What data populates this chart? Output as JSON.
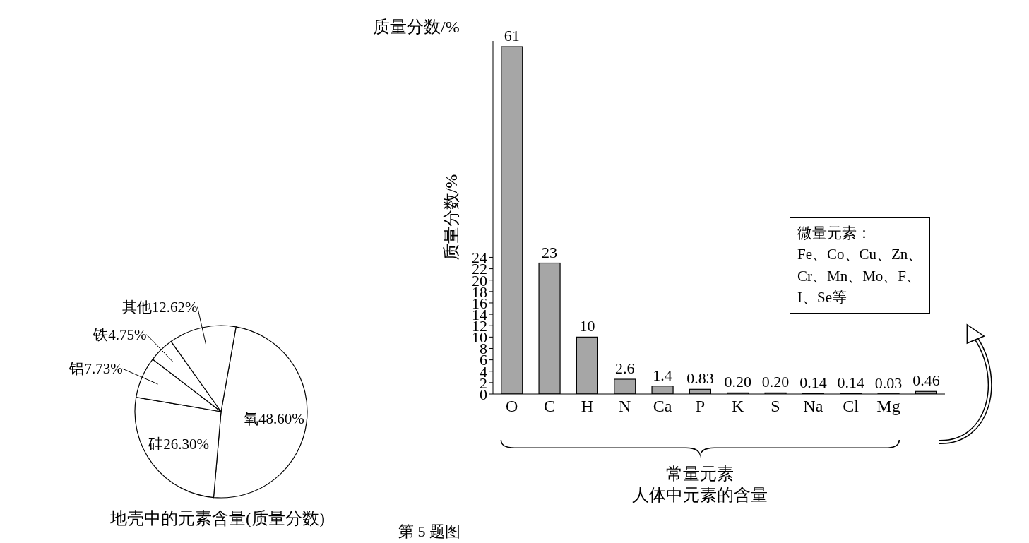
{
  "chart_data": [
    {
      "type": "pie",
      "title": "地壳中的元素含量(质量分数)",
      "categories": [
        "氧",
        "硅",
        "铝",
        "铁",
        "其他"
      ],
      "values": [
        48.6,
        26.3,
        7.73,
        4.75,
        12.62
      ],
      "colors": [
        "#ffffff",
        "#ffffff",
        "#ffffff",
        "#ffffff",
        "#ffffff"
      ],
      "value_labels": [
        "48.60%",
        "26.30%",
        "7.73%",
        "4.75%",
        "12.62%"
      ]
    },
    {
      "type": "bar",
      "title": "人体中元素的含量",
      "ylabel": "质量分数/%",
      "categories": [
        "O",
        "C",
        "H",
        "N",
        "Ca",
        "P",
        "K",
        "S",
        "Na",
        "Cl",
        "Mg",
        null
      ],
      "values": [
        61,
        23,
        10,
        2.6,
        1.4,
        0.83,
        0.2,
        0.2,
        0.14,
        0.14,
        0.03,
        0.46
      ],
      "value_labels": [
        "61",
        "23",
        "10",
        "2.6",
        "1.4",
        "0.83",
        "0.20",
        "0.20",
        "0.14",
        "0.14",
        "0.03",
        "0.46"
      ],
      "color": "#a6a6a6",
      "ylim": [
        0,
        62
      ],
      "yticks": [
        0,
        2,
        4,
        6,
        8,
        10,
        12,
        14,
        16,
        18,
        20,
        22,
        24
      ],
      "annotations": [
        "质量分数/%",
        "常量元素",
        "微量元素：\nFe、Co、Cu、Zn、\nCr、Mn、Mo、F、\nI、Se等",
        "第 5 题图"
      ]
    }
  ]
}
